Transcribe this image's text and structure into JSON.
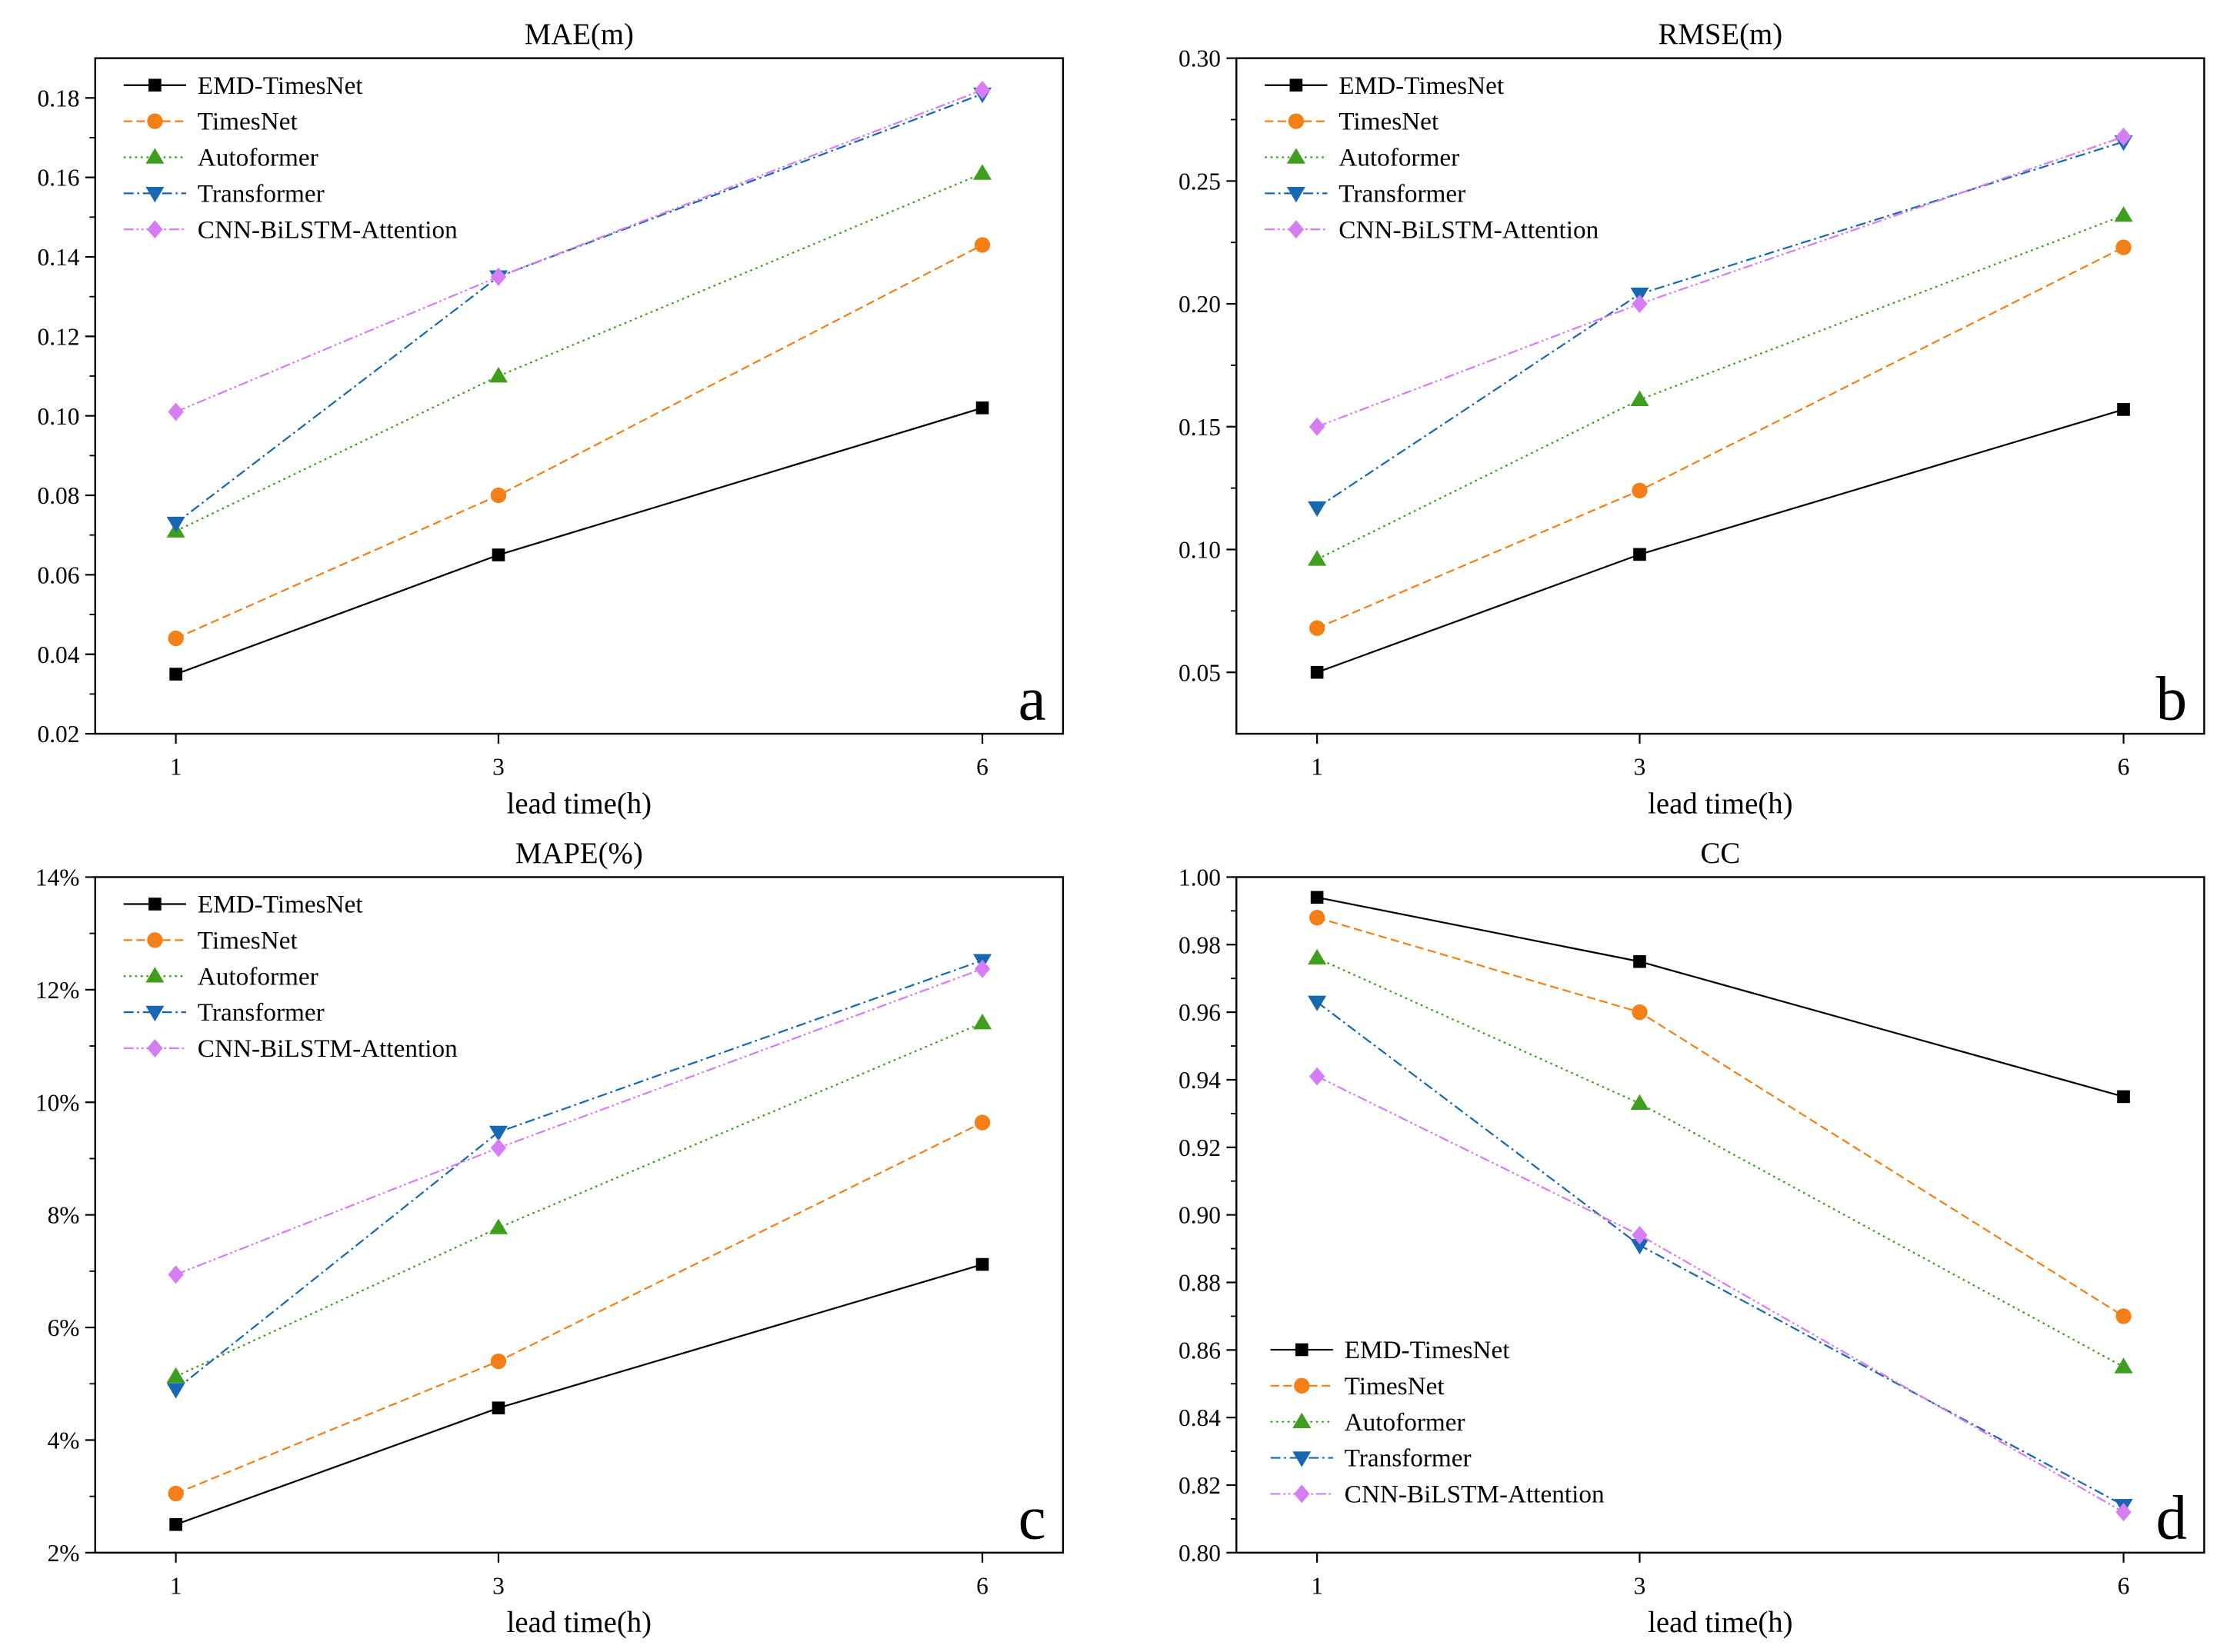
{
  "series_styles": [
    {
      "name": "EMD-TimesNet",
      "color": "#000000",
      "marker": "square",
      "dash": "solid"
    },
    {
      "name": "TimesNet",
      "color": "#f57f17",
      "marker": "circle",
      "dash": "dash"
    },
    {
      "name": "Autoformer",
      "color": "#3f9e1e",
      "marker": "triangle-up",
      "dash": "dot"
    },
    {
      "name": "Transformer",
      "color": "#1768b0",
      "marker": "triangle-down",
      "dash": "dashdot"
    },
    {
      "name": "CNN-BiLSTM-Attention",
      "color": "#d67cf5",
      "marker": "diamond",
      "dash": "dashdotdot"
    }
  ],
  "chart_data": [
    {
      "type": "line",
      "panel_letter": "a",
      "title": "MAE(m)",
      "xlabel": "lead time(h)",
      "ylabel": "",
      "x": [
        1,
        3,
        6
      ],
      "xticks": [
        "1",
        "3",
        "6"
      ],
      "xlim": [
        0.5,
        6.5
      ],
      "ylim": [
        0.02,
        0.19
      ],
      "yticks": [
        0.02,
        0.04,
        0.06,
        0.08,
        0.1,
        0.12,
        0.14,
        0.16,
        0.18
      ],
      "ytick_labels": [
        "0.02",
        "0.04",
        "0.06",
        "0.08",
        "0.10",
        "0.12",
        "0.14",
        "0.16",
        "0.18"
      ],
      "legend_position": "top-left",
      "series": [
        {
          "name": "EMD-TimesNet",
          "values": [
            0.035,
            0.065,
            0.102
          ]
        },
        {
          "name": "TimesNet",
          "values": [
            0.044,
            0.08,
            0.143
          ]
        },
        {
          "name": "Autoformer",
          "values": [
            0.071,
            0.11,
            0.161
          ]
        },
        {
          "name": "Transformer",
          "values": [
            0.073,
            0.135,
            0.181
          ]
        },
        {
          "name": "CNN-BiLSTM-Attention",
          "values": [
            0.101,
            0.135,
            0.182
          ]
        }
      ]
    },
    {
      "type": "line",
      "panel_letter": "b",
      "title": "RMSE(m)",
      "xlabel": "lead time(h)",
      "ylabel": "",
      "x": [
        1,
        3,
        6
      ],
      "xticks": [
        "1",
        "3",
        "6"
      ],
      "xlim": [
        0.5,
        6.5
      ],
      "ylim": [
        0.025,
        0.3
      ],
      "yticks": [
        0.05,
        0.1,
        0.15,
        0.2,
        0.25,
        0.3
      ],
      "ytick_labels": [
        "0.05",
        "0.10",
        "0.15",
        "0.20",
        "0.25",
        "0.30"
      ],
      "legend_position": "top-left",
      "series": [
        {
          "name": "EMD-TimesNet",
          "values": [
            0.05,
            0.098,
            0.157
          ]
        },
        {
          "name": "TimesNet",
          "values": [
            0.068,
            0.124,
            0.223
          ]
        },
        {
          "name": "Autoformer",
          "values": [
            0.096,
            0.161,
            0.236
          ]
        },
        {
          "name": "Transformer",
          "values": [
            0.117,
            0.204,
            0.266
          ]
        },
        {
          "name": "CNN-BiLSTM-Attention",
          "values": [
            0.15,
            0.2,
            0.268
          ]
        }
      ]
    },
    {
      "type": "line",
      "panel_letter": "c",
      "title": "MAPE(%)",
      "xlabel": "lead time(h)",
      "ylabel": "",
      "x": [
        1,
        3,
        6
      ],
      "xticks": [
        "1",
        "3",
        "6"
      ],
      "xlim": [
        0.5,
        6.5
      ],
      "ylim": [
        2,
        14
      ],
      "yticks": [
        2,
        4,
        6,
        8,
        10,
        12,
        14
      ],
      "ytick_labels": [
        "2%",
        "4%",
        "6%",
        "8%",
        "10%",
        "12%",
        "14%"
      ],
      "legend_position": "top-left",
      "series": [
        {
          "name": "EMD-TimesNet",
          "values": [
            2.5,
            4.57,
            7.12
          ]
        },
        {
          "name": "TimesNet",
          "values": [
            3.05,
            5.4,
            9.64
          ]
        },
        {
          "name": "Autoformer",
          "values": [
            5.13,
            7.77,
            11.41
          ]
        },
        {
          "name": "Transformer",
          "values": [
            4.9,
            9.47,
            12.52
          ]
        },
        {
          "name": "CNN-BiLSTM-Attention",
          "values": [
            6.94,
            9.19,
            12.37
          ]
        }
      ]
    },
    {
      "type": "line",
      "panel_letter": "d",
      "title": "CC",
      "xlabel": "lead time(h)",
      "ylabel": "",
      "x": [
        1,
        3,
        6
      ],
      "xticks": [
        "1",
        "3",
        "6"
      ],
      "xlim": [
        0.5,
        6.5
      ],
      "ylim": [
        0.8,
        1.0
      ],
      "yticks": [
        0.8,
        0.82,
        0.84,
        0.86,
        0.88,
        0.9,
        0.92,
        0.94,
        0.96,
        0.98,
        1.0
      ],
      "ytick_labels": [
        "0.80",
        "0.82",
        "0.84",
        "0.86",
        "0.88",
        "0.90",
        "0.92",
        "0.94",
        "0.96",
        "0.98",
        "1.00"
      ],
      "legend_position": "bottom-left",
      "series": [
        {
          "name": "EMD-TimesNet",
          "values": [
            0.994,
            0.975,
            0.935
          ]
        },
        {
          "name": "TimesNet",
          "values": [
            0.988,
            0.96,
            0.87
          ]
        },
        {
          "name": "Autoformer",
          "values": [
            0.976,
            0.933,
            0.855
          ]
        },
        {
          "name": "Transformer",
          "values": [
            0.963,
            0.891,
            0.814
          ]
        },
        {
          "name": "CNN-BiLSTM-Attention",
          "values": [
            0.941,
            0.894,
            0.812
          ]
        }
      ]
    }
  ]
}
